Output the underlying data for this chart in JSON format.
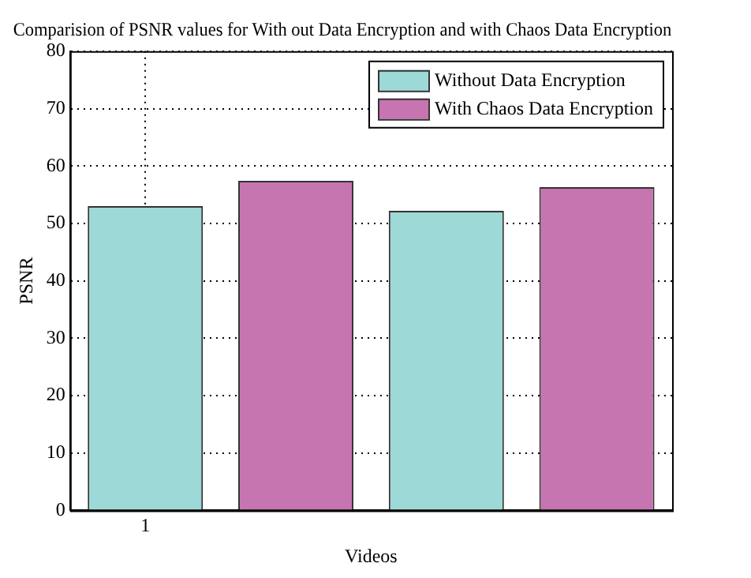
{
  "chart_data": {
    "type": "bar",
    "title": "Comparision of PSNR values for With out Data Encryption and with Chaos Data Encryption",
    "xlabel": "Videos",
    "ylabel": "PSNR",
    "categories": [
      "1",
      null,
      null,
      null
    ],
    "series": [
      {
        "name": "Without Data Encryption",
        "color": "#9dd9d6",
        "values": [
          53.0,
          null,
          52.2,
          null
        ]
      },
      {
        "name": "With Chaos Data Encryption",
        "color": "#c675b0",
        "values": [
          null,
          57.4,
          null,
          56.3
        ]
      }
    ],
    "ylim": [
      0,
      80
    ],
    "yticks": [
      0,
      10,
      20,
      30,
      40,
      50,
      60,
      70,
      80
    ],
    "grid": true,
    "legend": "top right"
  }
}
